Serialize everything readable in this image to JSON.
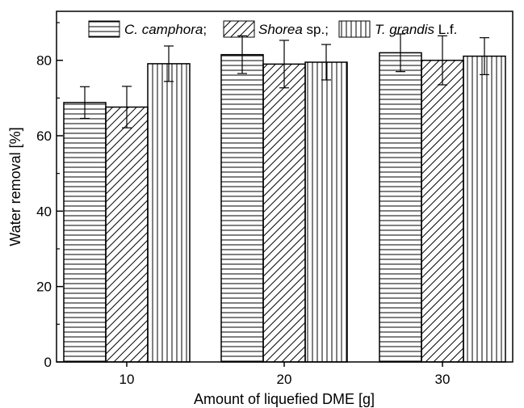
{
  "chart_data": {
    "type": "bar",
    "xlabel": "Amount of liquefied DME [g]",
    "ylabel": "Water removal [%]",
    "categories": [
      "10",
      "20",
      "30"
    ],
    "ylim": [
      0,
      93
    ],
    "yticks": [
      0,
      20,
      40,
      60,
      80
    ],
    "grid": false,
    "legend_position": "top",
    "series": [
      {
        "name": "C. camphora",
        "legend": {
          "italic": "C. camphora",
          "suffix": ";"
        },
        "pattern": "horizontal-lines",
        "values": [
          68.8,
          81.5,
          82.0
        ],
        "errors": [
          4.2,
          5.0,
          5.0
        ]
      },
      {
        "name": "Shorea sp.",
        "legend": {
          "italic": "Shorea",
          "suffix": " sp.;"
        },
        "pattern": "diagonal-lines",
        "values": [
          67.6,
          79.0,
          80.0
        ],
        "errors": [
          5.5,
          6.3,
          6.5
        ]
      },
      {
        "name": "T. grandis L.f.",
        "legend": {
          "italic": "T. grandis",
          "suffix": " L.f."
        },
        "pattern": "vertical-lines",
        "values": [
          79.1,
          79.5,
          81.1
        ],
        "errors": [
          4.7,
          4.7,
          4.9
        ]
      }
    ],
    "colors": {
      "bar_stroke": "#000000",
      "pattern_line": "#000000",
      "background": "#ffffff"
    }
  }
}
